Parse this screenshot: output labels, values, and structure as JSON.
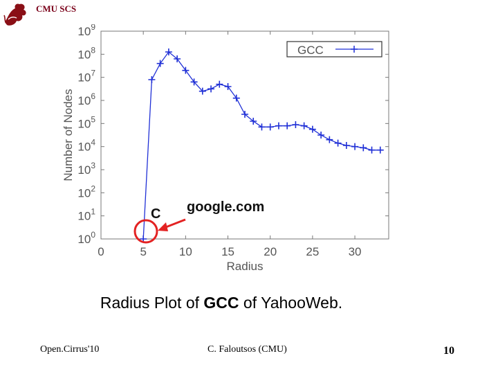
{
  "header": {
    "brand": "CMU SCS"
  },
  "caption": {
    "prefix": "Radius Plot of ",
    "bold": "GCC",
    "suffix": " of YahooWeb."
  },
  "footer": {
    "left": "Open.Cirrus'10",
    "center": "C. Faloutsos (CMU)",
    "page": "10"
  },
  "annotation": {
    "label_c": "C",
    "label_google": "google.com"
  },
  "colors": {
    "series": "#1f2fd6",
    "annotation": "#e32222",
    "logo": "#8a0f16"
  },
  "chart_data": {
    "type": "line",
    "xlabel": "Radius",
    "ylabel": "Number of Nodes",
    "xlim": [
      0,
      34
    ],
    "ylim_exp": [
      0,
      9
    ],
    "yscale": "log",
    "xticks": [
      0,
      5,
      10,
      15,
      20,
      25,
      30
    ],
    "yticks": [
      "10^0",
      "10^1",
      "10^2",
      "10^3",
      "10^4",
      "10^5",
      "10^6",
      "10^7",
      "10^8",
      "10^9"
    ],
    "legend_position": "top-right",
    "series": [
      {
        "name": "GCC",
        "x": [
          5,
          6,
          7,
          8,
          9,
          10,
          11,
          12,
          13,
          14,
          15,
          16,
          17,
          18,
          19,
          20,
          21,
          22,
          23,
          24,
          25,
          26,
          27,
          28,
          29,
          30,
          31,
          32,
          33
        ],
        "log10_y": [
          0,
          6.9,
          7.6,
          8.1,
          7.8,
          7.3,
          6.8,
          6.4,
          6.5,
          6.7,
          6.6,
          6.1,
          5.4,
          5.1,
          4.85,
          4.85,
          4.9,
          4.9,
          4.95,
          4.9,
          4.75,
          4.5,
          4.3,
          4.15,
          4.05,
          4.0,
          3.95,
          3.85,
          3.85
        ]
      }
    ]
  }
}
